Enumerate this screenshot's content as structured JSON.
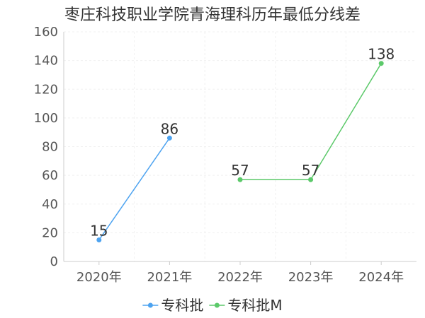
{
  "chart_data": {
    "type": "line",
    "title": "枣庄科技职业学院青海理科历年最低分线差",
    "categories": [
      "2020年",
      "2021年",
      "2022年",
      "2023年",
      "2024年"
    ],
    "ylim": [
      0,
      160
    ],
    "yticks": [
      0,
      20,
      40,
      60,
      80,
      100,
      120,
      140,
      160
    ],
    "grid": true,
    "legend_position": "bottom",
    "series": [
      {
        "name": "专科批",
        "color": "#4da3f0",
        "values": [
          15,
          86,
          null,
          null,
          null
        ]
      },
      {
        "name": "专科批M",
        "color": "#5cc96a",
        "values": [
          null,
          null,
          57,
          57,
          138
        ]
      }
    ]
  }
}
